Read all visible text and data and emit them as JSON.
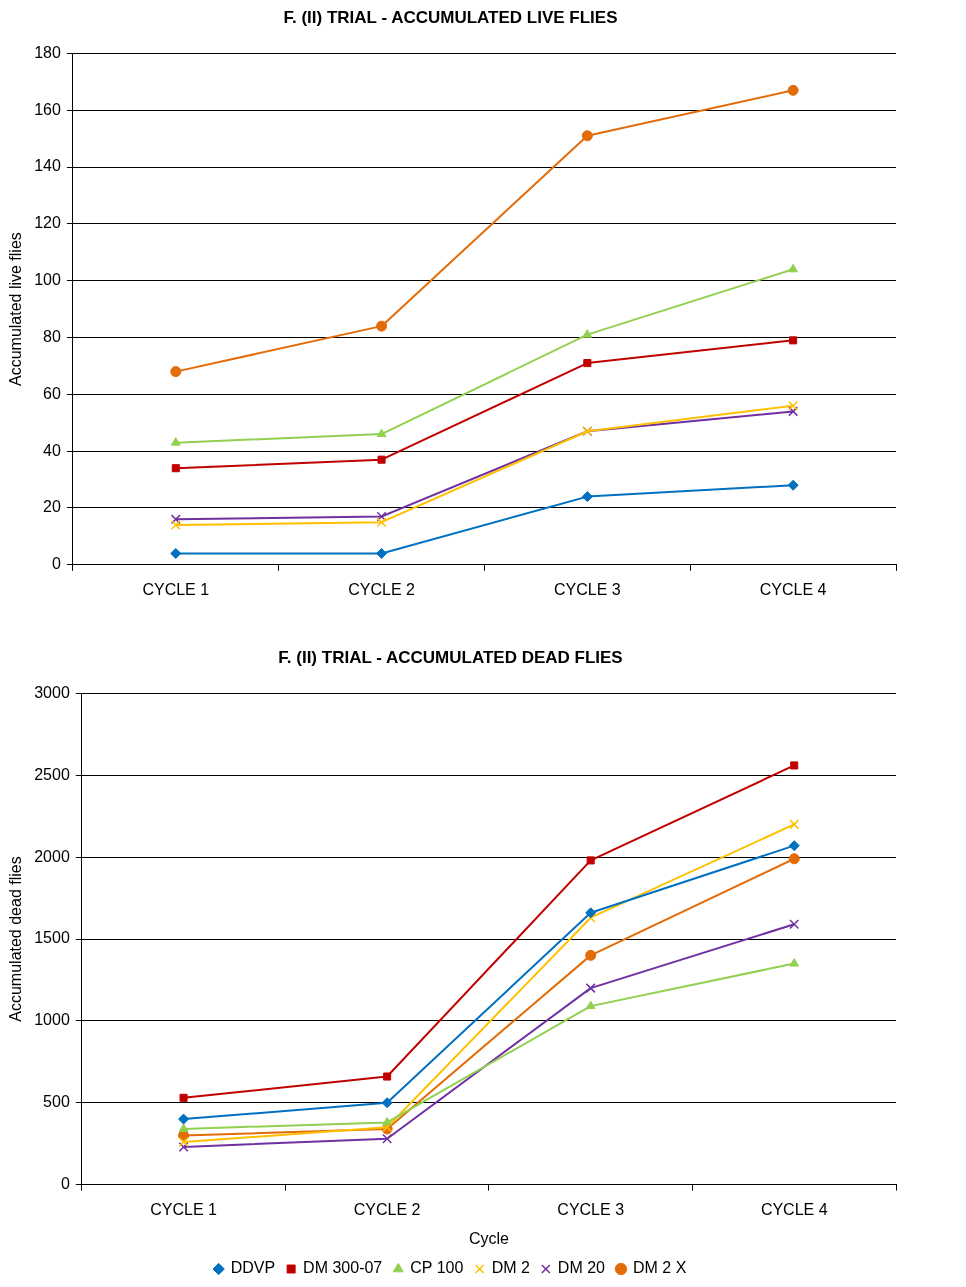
{
  "chart_data": [
    {
      "type": "line",
      "title": "F. (II) TRIAL - ACCUMULATED LIVE FLIES",
      "ylabel": "Accumulated live flies",
      "categories": [
        "CYCLE 1",
        "CYCLE 2",
        "CYCLE 3",
        "CYCLE 4"
      ],
      "ylim": [
        0,
        180
      ],
      "yticks": [
        0,
        20,
        40,
        60,
        80,
        100,
        120,
        140,
        160,
        180
      ],
      "grid": "y",
      "legend": false,
      "line_style": "solid",
      "series": [
        {
          "color": "#0070c0",
          "marker": "diamond",
          "values": [
            4,
            4,
            24,
            28
          ]
        },
        {
          "color": "#c00000",
          "marker": "square",
          "values": [
            34,
            37,
            71,
            79
          ]
        },
        {
          "color": "#92d050",
          "marker": "triangle",
          "values": [
            43,
            46,
            81,
            104
          ]
        },
        {
          "color": "#ffc000",
          "marker": "cross",
          "values": [
            14,
            15,
            47,
            56
          ]
        },
        {
          "color": "#7030a0",
          "marker": "cross",
          "values": [
            16,
            17,
            47,
            54
          ]
        },
        {
          "color": "#e36c09",
          "marker": "circle",
          "values": [
            68,
            84,
            151,
            167
          ]
        }
      ]
    },
    {
      "type": "line",
      "title": "F. (II) TRIAL - ACCUMULATED DEAD FLIES",
      "xlabel": "Cycle",
      "ylabel": "Accumulated dead flies",
      "categories": [
        "CYCLE 1",
        "CYCLE 2",
        "CYCLE 3",
        "CYCLE 4"
      ],
      "ylim": [
        0,
        3000
      ],
      "yticks": [
        0,
        500,
        1000,
        1500,
        2000,
        2500,
        3000
      ],
      "grid": "y",
      "legend": "bottom",
      "line_style": "solid",
      "series": [
        {
          "name": "DDVP",
          "color": "#0070c0",
          "marker": "diamond",
          "values": [
            400,
            500,
            1660,
            2070
          ]
        },
        {
          "name": "DM 300-07",
          "color": "#c00000",
          "marker": "square",
          "values": [
            530,
            660,
            1980,
            2560
          ]
        },
        {
          "name": "CP 100",
          "color": "#92d050",
          "marker": "triangle",
          "values": [
            340,
            380,
            1090,
            1350
          ]
        },
        {
          "name": "DM 2",
          "color": "#ffc000",
          "marker": "cross",
          "values": [
            260,
            350,
            1630,
            2200
          ]
        },
        {
          "name": "DM 20",
          "color": "#7030a0",
          "marker": "cross",
          "values": [
            230,
            280,
            1200,
            1590
          ]
        },
        {
          "name": "DM 2 X",
          "color": "#e36c09",
          "marker": "circle",
          "values": [
            300,
            340,
            1400,
            1990
          ]
        }
      ]
    }
  ]
}
